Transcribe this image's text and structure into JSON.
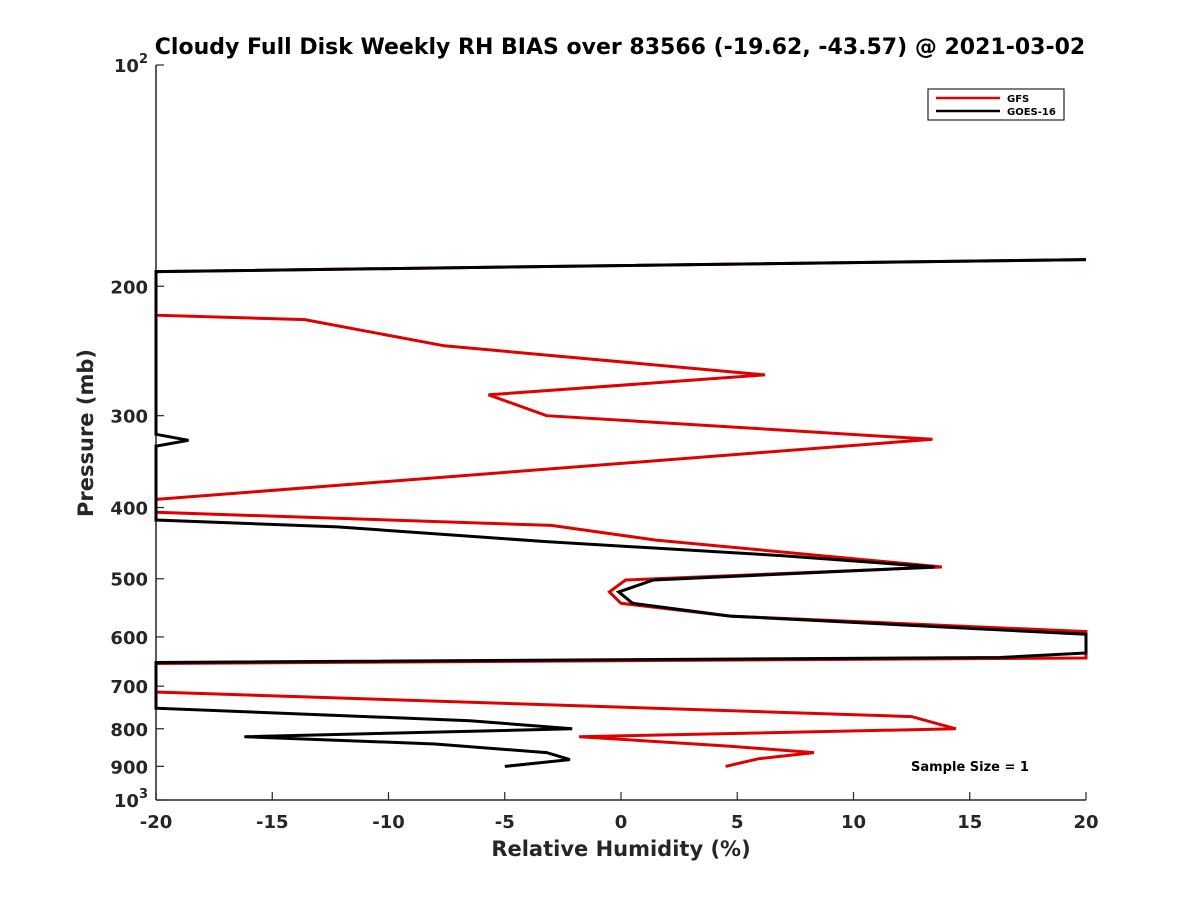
{
  "chart_data": {
    "type": "line",
    "title": "Cloudy Full Disk Weekly RH BIAS over 83566 (-19.62, -43.57) @ 2021-03-02",
    "xlabel": "Relative Humidity (%)",
    "ylabel": "Pressure (mb)",
    "xlim": [
      -20,
      20
    ],
    "ylim": [
      100,
      1000
    ],
    "yscale": "log",
    "y_reversed": true,
    "grid": false,
    "legend_position": "top-right",
    "x_ticks": [
      -20,
      -15,
      -10,
      -5,
      0,
      5,
      10,
      15,
      20
    ],
    "x_tick_labels": [
      "-20",
      "-15",
      "-10",
      "-5",
      "0",
      "5",
      "10",
      "15",
      "20"
    ],
    "y_ticks": [
      100,
      200,
      300,
      400,
      500,
      600,
      700,
      800,
      900,
      1000
    ],
    "y_tick_labels": [
      {
        "base": "10",
        "exp": "2"
      },
      {
        "base": "200",
        "exp": ""
      },
      {
        "base": "300",
        "exp": ""
      },
      {
        "base": "400",
        "exp": ""
      },
      {
        "base": "500",
        "exp": ""
      },
      {
        "base": "600",
        "exp": ""
      },
      {
        "base": "700",
        "exp": ""
      },
      {
        "base": "800",
        "exp": ""
      },
      {
        "base": "900",
        "exp": ""
      },
      {
        "base": "10",
        "exp": "3"
      }
    ],
    "annotation": "Sample Size = 1",
    "series": [
      {
        "name": "GFS",
        "color": "#e00000",
        "points": [
          [
            20,
            184
          ],
          [
            -20,
            191
          ],
          [
            -20,
            219
          ],
          [
            -13.6,
            222
          ],
          [
            -7.6,
            241
          ],
          [
            6.2,
            264
          ],
          [
            -5.7,
            281
          ],
          [
            -3.2,
            300
          ],
          [
            13.4,
            323
          ],
          [
            -20,
            390
          ],
          [
            -20,
            406
          ],
          [
            -3,
            423
          ],
          [
            1.5,
            443
          ],
          [
            13.8,
            482
          ],
          [
            0.2,
            502
          ],
          [
            -0.5,
            521
          ],
          [
            0,
            540
          ],
          [
            4.7,
            562
          ],
          [
            20,
            590
          ],
          [
            20,
            641
          ],
          [
            -20,
            652
          ],
          [
            -20,
            713
          ],
          [
            12.5,
            770
          ],
          [
            14.4,
            800
          ],
          [
            -1.8,
            820
          ],
          [
            4.7,
            845
          ],
          [
            8.3,
            862
          ],
          [
            5.9,
            879
          ],
          [
            4.5,
            900
          ]
        ]
      },
      {
        "name": "GOES-16",
        "color": "#000000",
        "points": [
          [
            20,
            184
          ],
          [
            -20,
            191
          ],
          [
            -20,
            318
          ],
          [
            -18.6,
            324
          ],
          [
            -20,
            330
          ],
          [
            -20,
            416
          ],
          [
            -12.2,
            425
          ],
          [
            -3.3,
            445
          ],
          [
            6.9,
            465
          ],
          [
            13.5,
            482
          ],
          [
            1.4,
            502
          ],
          [
            -0.1,
            521
          ],
          [
            0.5,
            540
          ],
          [
            4.7,
            562
          ],
          [
            20,
            595
          ],
          [
            20,
            631
          ],
          [
            16.3,
            640
          ],
          [
            -20,
            650
          ],
          [
            -20,
            750
          ],
          [
            -6.5,
            780
          ],
          [
            -2.1,
            800
          ],
          [
            -16.2,
            820
          ],
          [
            -8,
            839
          ],
          [
            -3.2,
            862
          ],
          [
            -2.2,
            881
          ],
          [
            -5,
            900
          ]
        ]
      }
    ]
  }
}
